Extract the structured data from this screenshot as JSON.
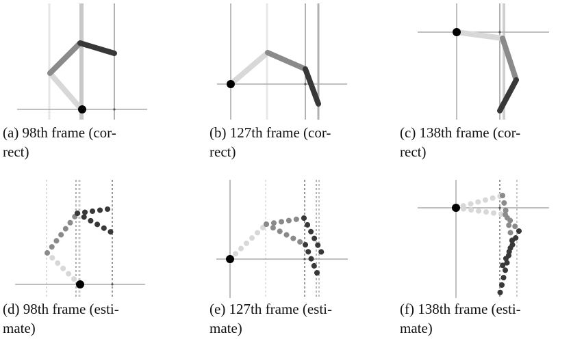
{
  "panels": [
    {
      "caption_line1": "(a) 98th frame (cor-",
      "caption_line2": "rect)"
    },
    {
      "caption_line1": "(b) 127th frame (cor-",
      "caption_line2": "rect)"
    },
    {
      "caption_line1": "(c) 138th frame (cor-",
      "caption_line2": "rect)"
    },
    {
      "caption_line1": "(d) 98th frame (esti-",
      "caption_line2": "mate)"
    },
    {
      "caption_line1": "(e) 127th frame (esti-",
      "caption_line2": "mate)"
    },
    {
      "caption_line1": "(f) 138th frame (esti-",
      "caption_line2": "mate)"
    }
  ],
  "colors": {
    "guide_light": "#dddddd",
    "guide_mid": "#bbbbbb",
    "guide_dark": "#999999",
    "seg_light": "#d6d6d6",
    "seg_mid": "#8a8a8a",
    "seg_dark": "#333333",
    "joint": "#000000"
  }
}
